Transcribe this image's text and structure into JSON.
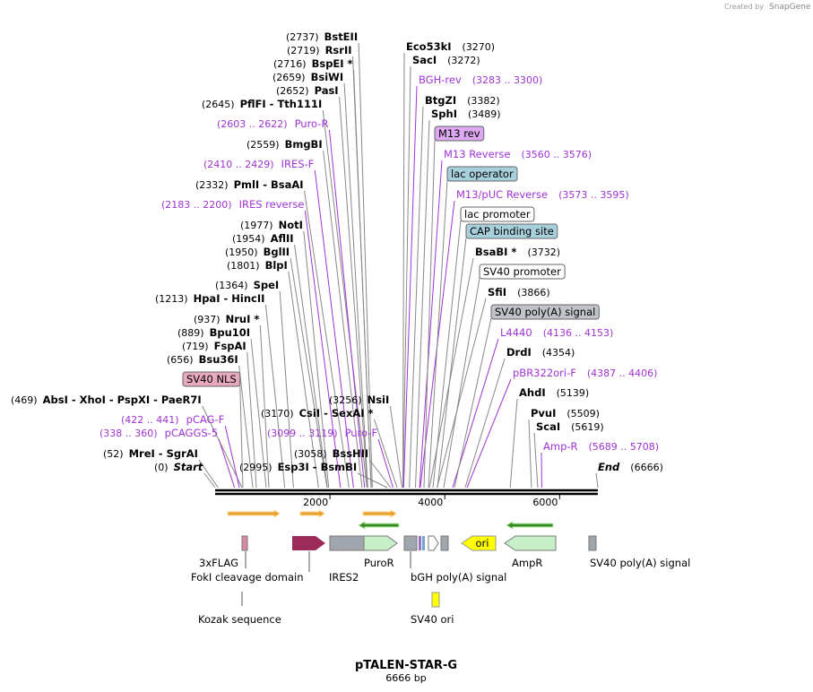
{
  "header": {
    "created_by": "Created by",
    "brand": "SnapGene"
  },
  "left_labels": [
    {
      "pos": "(2737)",
      "name": "BstEII"
    },
    {
      "pos": "(2719)",
      "name": "RsrII"
    },
    {
      "pos": "(2716)",
      "name": "BspEI *"
    },
    {
      "pos": "(2659)",
      "name": "BsiWI"
    },
    {
      "pos": "(2652)",
      "name": "PasI"
    },
    {
      "pos": "(2645)",
      "name": "PflFI - Tth111I"
    },
    {
      "range": "(2603 .. 2622)",
      "name": "Puro-R"
    },
    {
      "pos": "(2559)",
      "name": "BmgBI"
    },
    {
      "range": "(2410 .. 2429)",
      "name": "IRES-F"
    },
    {
      "pos": "(2332)",
      "name": "PmlI - BsaAI"
    },
    {
      "range": "(2183 .. 2200)",
      "name": "IRES reverse"
    },
    {
      "pos": "(1977)",
      "name": "NotI"
    },
    {
      "pos": "(1954)",
      "name": "AflII"
    },
    {
      "pos": "(1950)",
      "name": "BglII"
    },
    {
      "pos": "(1801)",
      "name": "BlpI"
    },
    {
      "pos": "(1364)",
      "name": "SpeI"
    },
    {
      "pos": "(1213)",
      "name": "HpaI - HincII"
    },
    {
      "pos": "(937)",
      "name": "NruI *"
    },
    {
      "pos": "(889)",
      "name": "Bpu10I"
    },
    {
      "pos": "(719)",
      "name": "FspAI"
    },
    {
      "pos": "(656)",
      "name": "Bsu36I"
    },
    {
      "pos": "(469)",
      "name": "AbsI - XhoI - PspXI - PaeR7I"
    },
    {
      "range": "(422 .. 441)",
      "name": "pCAG-F"
    },
    {
      "range": "(338 .. 360)",
      "name": "pCAGGS-5"
    },
    {
      "pos": "(52)",
      "name": "MreI - SgrAI"
    },
    {
      "pos": "(0)",
      "name": "Start"
    }
  ],
  "middle_labels": [
    {
      "pos": "(2995)",
      "name": "Esp3I - BsmBI"
    },
    {
      "pos": "(3058)",
      "name": "BssHII"
    },
    {
      "range": "(3099 .. 3119)",
      "name": "Puro-F"
    },
    {
      "pos": "(3170)",
      "name": "CsiI - SexAI *"
    },
    {
      "pos": "(3256)",
      "name": "NsiI"
    }
  ],
  "right_labels": [
    {
      "pos": "(3270)",
      "name": "Eco53kI"
    },
    {
      "pos": "(3272)",
      "name": "SacI"
    },
    {
      "range": "(3283 .. 3300)",
      "name": "BGH-rev"
    },
    {
      "pos": "(3382)",
      "name": "BtgZI"
    },
    {
      "pos": "(3489)",
      "name": "SphI"
    },
    {
      "range": "(3560 .. 3576)",
      "name": "M13 Reverse"
    },
    {
      "range": "(3573 .. 3595)",
      "name": "M13/pUC Reverse"
    },
    {
      "pos": "(3732)",
      "name": "BsaBI *"
    },
    {
      "pos": "(3866)",
      "name": "SfiI"
    },
    {
      "range": "(4136 .. 4153)",
      "name": "L4440"
    },
    {
      "pos": "(4354)",
      "name": "DrdI"
    },
    {
      "range": "(4387 .. 4406)",
      "name": "pBR322ori-F"
    },
    {
      "pos": "(5139)",
      "name": "AhdI"
    },
    {
      "pos": "(5509)",
      "name": "PvuI"
    },
    {
      "pos": "(5619)",
      "name": "ScaI"
    },
    {
      "range": "(5689 .. 5708)",
      "name": "Amp-R"
    },
    {
      "pos": "(6666)",
      "name": "End"
    }
  ],
  "boxed_features": [
    {
      "name": "SV40 NLS",
      "box_color": "#e8a8c0"
    },
    {
      "name": "M13 rev",
      "box_color": "#dca8f0"
    },
    {
      "name": "lac operator",
      "box_color": "#a8d0dc"
    },
    {
      "name": "lac promoter",
      "box_color": "#ffffff"
    },
    {
      "name": "CAP binding site",
      "box_color": "#a8d0dc"
    },
    {
      "name": "SV40 promoter",
      "box_color": "#ffffff"
    },
    {
      "name": "SV40 poly(A) signal",
      "box_color": "#c0c4c8"
    }
  ],
  "ticks": [
    2000,
    4000,
    6000
  ],
  "features": [
    "3xFLAG",
    "FokI cleavage domain",
    "IRES2",
    "PuroR",
    "bGH poly(A) signal",
    "AmpR",
    "SV40 poly(A) signal",
    "Kozak sequence",
    "SV40 ori"
  ],
  "ori_label": "ori",
  "map": {
    "title": "pTALEN-STAR-G",
    "length": "6666 bp"
  }
}
